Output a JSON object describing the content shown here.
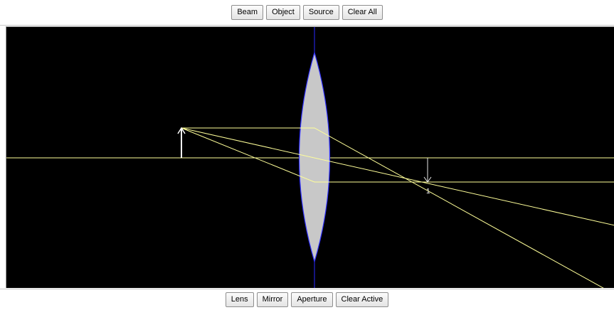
{
  "top_toolbar": {
    "buttons": [
      {
        "name": "beam-button",
        "label": "Beam"
      },
      {
        "name": "object-button",
        "label": "Object"
      },
      {
        "name": "source-button",
        "label": "Source"
      },
      {
        "name": "clear-all-button",
        "label": "Clear All"
      }
    ]
  },
  "bottom_toolbar": {
    "buttons": [
      {
        "name": "lens-button",
        "label": "Lens"
      },
      {
        "name": "mirror-button",
        "label": "Mirror"
      },
      {
        "name": "aperture-button",
        "label": "Aperture"
      },
      {
        "name": "clear-active-button",
        "label": "Clear Active"
      }
    ]
  },
  "canvas": {
    "background_color": "#000000",
    "axis_color": "#ffff99",
    "ray_color": "#ffff99",
    "lens_fill": "#c8c8c8",
    "lens_outline": "#3333ff",
    "object_color": "#ffffff",
    "image_label": "1"
  }
}
